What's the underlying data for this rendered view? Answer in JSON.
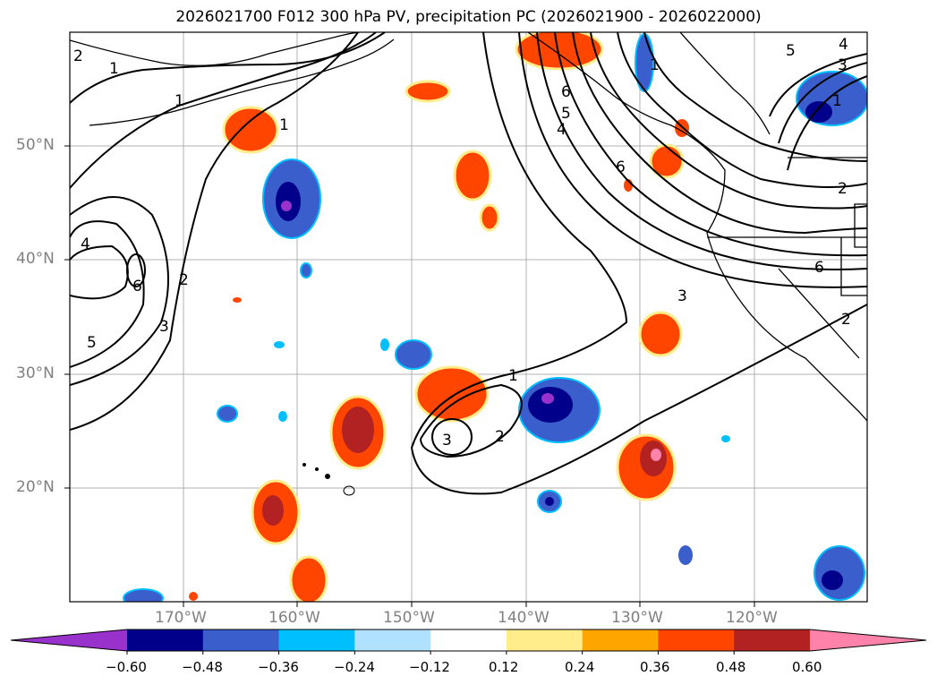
{
  "title": "2026021700 F012 300 hPa PV, precipitation PC (2026021900 - 2026022000)",
  "lat_labels": [
    "50°N",
    "40°N",
    "30°N",
    "20°N"
  ],
  "lon_labels": [
    "170°W",
    "160°W",
    "150°W",
    "140°W",
    "130°W",
    "120°W"
  ],
  "colorbar": {
    "ticks": [
      "−0.60",
      "−0.48",
      "−0.36",
      "−0.24",
      "−0.12",
      "0.12",
      "0.24",
      "0.36",
      "0.48",
      "0.60"
    ],
    "colors": [
      "#9932CC",
      "#00008B",
      "#3A5FCD",
      "#00BFFF",
      "#B0E2FF",
      "#FFFFFF",
      "#FFEC8B",
      "#FFA500",
      "#FF4500",
      "#B22222",
      "#FF82AB"
    ]
  },
  "contour_labels": [
    "1",
    "2",
    "3",
    "4",
    "5",
    "6"
  ],
  "map_colors": {
    "grid": "#b0b0b0",
    "land": "#000000"
  }
}
